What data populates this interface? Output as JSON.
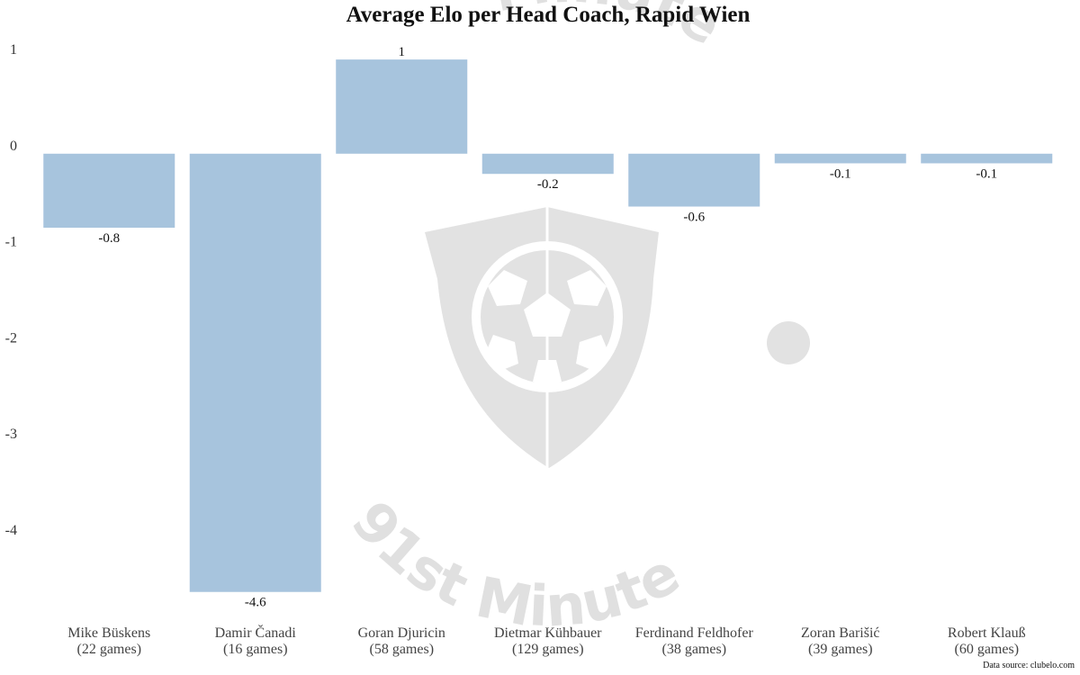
{
  "chart_data": {
    "type": "bar",
    "title": "Average Elo per Head Coach, Rapid Wien",
    "categories": [
      [
        "Mike Büskens",
        "(22 games)"
      ],
      [
        "Damir Čanadi",
        "(16 games)"
      ],
      [
        "Goran Djuricin",
        "(58 games)"
      ],
      [
        "Dietmar Kühbauer",
        "(129 games)"
      ],
      [
        "Ferdinand Feldhofer",
        "(38 games)"
      ],
      [
        "Zoran Barišić",
        "(39 games)"
      ],
      [
        "Robert Klauß",
        "(60 games)"
      ]
    ],
    "values": [
      -0.77,
      -4.56,
      0.98,
      -0.21,
      -0.55,
      -0.1,
      -0.1
    ],
    "value_labels": [
      "-0.8",
      "-4.6",
      "1",
      "-0.2",
      "-0.6",
      "-0.1",
      "-0.1"
    ],
    "yticks": [
      1,
      0,
      -1,
      -2,
      -3,
      -4
    ],
    "ytick_labels": [
      "1",
      "0",
      "-1",
      "-2",
      "-3",
      "-4"
    ],
    "ylim": [
      -4.6,
      1.0
    ],
    "grid": false,
    "bar_color": "#a7c4dd",
    "source": "Data source: clubelo.com"
  },
  "watermark": {
    "top_text": "Minute",
    "bottom_text": "91st Minute",
    "color": "#e0e0e0",
    "icon": "shield-football-icon"
  }
}
